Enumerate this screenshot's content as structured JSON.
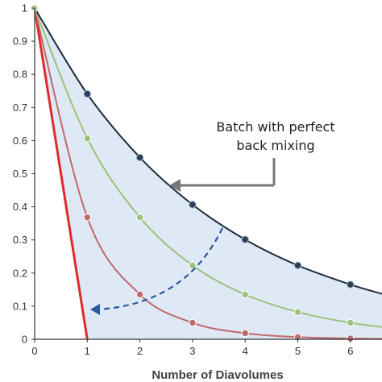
{
  "chart_data": {
    "type": "line",
    "xlabel": "Number of Diavolumes",
    "ylabel": "",
    "xlim": [
      0,
      6.6
    ],
    "ylim": [
      0,
      1
    ],
    "x_ticks": [
      "0",
      "1",
      "2",
      "3",
      "4",
      "5",
      "6"
    ],
    "y_ticks": [
      "0",
      "0.1",
      "0.2",
      "0.3",
      "0.4",
      "0.5",
      "0.6",
      "0.7",
      "0.8",
      "0.9",
      "1"
    ],
    "grid": false,
    "series": [
      {
        "color": "#1f2d3d",
        "x": [
          0,
          1,
          2,
          3,
          4,
          5,
          6,
          6.6
        ],
        "values": [
          1,
          0.7408,
          0.5488,
          0.4066,
          0.3012,
          0.2231,
          0.1653,
          0.1372
        ]
      },
      {
        "color": "#9dc27a",
        "x": [
          0,
          1,
          2,
          3,
          4,
          5,
          6,
          6.6
        ],
        "values": [
          1,
          0.6065,
          0.3679,
          0.2231,
          0.1353,
          0.0821,
          0.0498,
          0.0369
        ]
      },
      {
        "color": "#c0696c",
        "x": [
          0,
          1,
          2,
          3,
          4,
          5,
          6,
          6.6
        ],
        "values": [
          1,
          0.3679,
          0.1353,
          0.0498,
          0.0183,
          0.0067,
          0.0025,
          0.0014
        ]
      },
      {
        "color": "#e02b2b",
        "x": [
          0,
          1
        ],
        "values": [
          1,
          0
        ]
      }
    ],
    "annotation": {
      "line1": "Batch with perfect",
      "line2": "back mixing"
    },
    "colors": {
      "shade": "#dfe9f5",
      "arrow": "#777777",
      "dashed_arrow": "#2b5a9a",
      "marker_fill_top": "#2d3e55"
    }
  }
}
